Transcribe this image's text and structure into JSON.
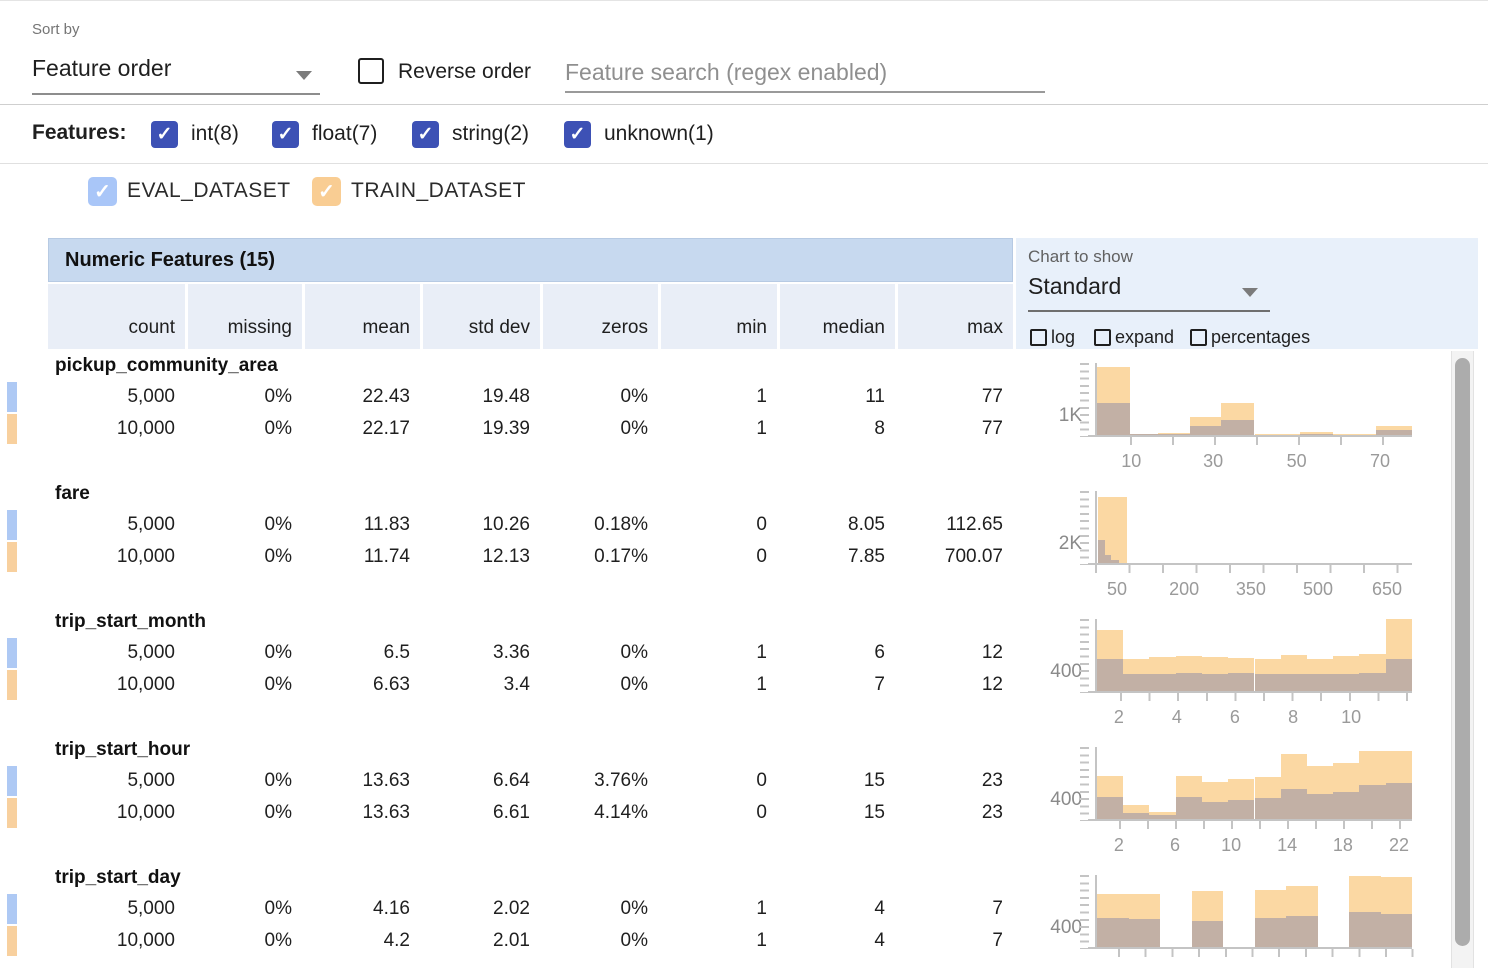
{
  "toolbar": {
    "sort_by_label": "Sort by",
    "sort_by_value": "Feature order",
    "reverse_order_label": "Reverse order",
    "search_placeholder": "Feature search (regex enabled)"
  },
  "filters": {
    "label": "Features:",
    "types": [
      {
        "label": "int(8)",
        "checked": true
      },
      {
        "label": "float(7)",
        "checked": true
      },
      {
        "label": "string(2)",
        "checked": true
      },
      {
        "label": "unknown(1)",
        "checked": true
      }
    ]
  },
  "datasets": [
    {
      "name": "EVAL_DATASET",
      "checked": true,
      "color": "#a9c6f8",
      "swatch": "#aec9f4"
    },
    {
      "name": "TRAIN_DATASET",
      "checked": true,
      "color": "#f9cd93",
      "swatch": "#f8d09e"
    }
  ],
  "table": {
    "title": "Numeric Features (15)",
    "columns": [
      "count",
      "missing",
      "mean",
      "std dev",
      "zeros",
      "min",
      "median",
      "max"
    ],
    "chart_controls": {
      "label": "Chart to show",
      "selected": "Standard",
      "checkboxes": [
        {
          "label": "log",
          "checked": false
        },
        {
          "label": "expand",
          "checked": false
        },
        {
          "label": "percentages",
          "checked": false
        }
      ]
    },
    "features": [
      {
        "name": "pickup_community_area",
        "rows": [
          [
            "5,000",
            "0%",
            "22.43",
            "19.48",
            "0%",
            "1",
            "11",
            "77"
          ],
          [
            "10,000",
            "0%",
            "22.17",
            "19.39",
            "0%",
            "1",
            "8",
            "77"
          ]
        ],
        "histogram": {
          "y_label": "1K",
          "x_ticks": [
            {
              "label": "10",
              "pos": 0.115
            },
            {
              "label": "30",
              "pos": 0.375
            },
            {
              "label": "50",
              "pos": 0.64
            },
            {
              "label": "70",
              "pos": 0.905
            }
          ],
          "tick_offset": 35,
          "tick_spacing": 42,
          "bars": [
            {
              "x": 0.0,
              "w": 0.105,
              "t": 0.95,
              "e": 0.44
            },
            {
              "x": 0.105,
              "w": 0.09,
              "t": 0.015,
              "e": 0.007
            },
            {
              "x": 0.195,
              "w": 0.1,
              "t": 0.03,
              "e": 0.012
            },
            {
              "x": 0.295,
              "w": 0.1,
              "t": 0.25,
              "e": 0.12
            },
            {
              "x": 0.395,
              "w": 0.105,
              "t": 0.44,
              "e": 0.21
            },
            {
              "x": 0.5,
              "w": 0.145,
              "t": 0.01,
              "e": 0.005
            },
            {
              "x": 0.645,
              "w": 0.105,
              "t": 0.04,
              "e": 0.012
            },
            {
              "x": 0.75,
              "w": 0.135,
              "t": 0.012,
              "e": 0.005
            },
            {
              "x": 0.885,
              "w": 0.115,
              "t": 0.13,
              "e": 0.07
            }
          ]
        }
      },
      {
        "name": "fare",
        "rows": [
          [
            "5,000",
            "0%",
            "11.83",
            "10.26",
            "0.18%",
            "0",
            "8.05",
            "112.65"
          ],
          [
            "10,000",
            "0%",
            "11.74",
            "12.13",
            "0.17%",
            "0",
            "7.85",
            "700.07"
          ]
        ],
        "histogram": {
          "y_label": "2K",
          "x_ticks": [
            {
              "label": "50",
              "pos": 0.07
            },
            {
              "label": "200",
              "pos": 0.283
            },
            {
              "label": "350",
              "pos": 0.495
            },
            {
              "label": "500",
              "pos": 0.708
            },
            {
              "label": "650",
              "pos": 0.927
            }
          ],
          "tick_offset": 0,
          "tick_spacing": 33.5,
          "bars": [
            {
              "x": 0.002,
              "w": 0.092,
              "t": 0.92,
              "e": 0
            },
            {
              "x": 0.002,
              "w": 0.023,
              "t": 0,
              "e": 0.32
            },
            {
              "x": 0.025,
              "w": 0.02,
              "t": 0,
              "e": 0.11
            },
            {
              "x": 0.045,
              "w": 0.024,
              "t": 0,
              "e": 0.035
            }
          ]
        }
      },
      {
        "name": "trip_start_month",
        "rows": [
          [
            "5,000",
            "0%",
            "6.5",
            "3.36",
            "0%",
            "1",
            "6",
            "12"
          ],
          [
            "10,000",
            "0%",
            "6.63",
            "3.4",
            "0%",
            "1",
            "7",
            "12"
          ]
        ],
        "histogram": {
          "y_label": "400",
          "x_ticks": [
            {
              "label": "2",
              "pos": 0.076
            },
            {
              "label": "4",
              "pos": 0.26
            },
            {
              "label": "6",
              "pos": 0.444
            },
            {
              "label": "8",
              "pos": 0.629
            },
            {
              "label": "10",
              "pos": 0.813
            }
          ],
          "tick_offset": 25,
          "tick_spacing": 28.6,
          "bars": [
            {
              "x": 0.0,
              "w": 0.0833,
              "t": 0.85,
              "e": 0.44
            },
            {
              "x": 0.0833,
              "w": 0.0833,
              "t": 0.44,
              "e": 0.23
            },
            {
              "x": 0.1666,
              "w": 0.0833,
              "t": 0.47,
              "e": 0.24
            },
            {
              "x": 0.25,
              "w": 0.0833,
              "t": 0.48,
              "e": 0.25
            },
            {
              "x": 0.3333,
              "w": 0.0833,
              "t": 0.47,
              "e": 0.24
            },
            {
              "x": 0.4166,
              "w": 0.0833,
              "t": 0.46,
              "e": 0.25
            },
            {
              "x": 0.5,
              "w": 0.0833,
              "t": 0.45,
              "e": 0.23
            },
            {
              "x": 0.5833,
              "w": 0.0833,
              "t": 0.5,
              "e": 0.24
            },
            {
              "x": 0.6666,
              "w": 0.0833,
              "t": 0.44,
              "e": 0.23
            },
            {
              "x": 0.75,
              "w": 0.0833,
              "t": 0.48,
              "e": 0.24
            },
            {
              "x": 0.8333,
              "w": 0.0833,
              "t": 0.52,
              "e": 0.25
            },
            {
              "x": 0.9166,
              "w": 0.0834,
              "t": 1.0,
              "e": 0.45
            }
          ]
        }
      },
      {
        "name": "trip_start_hour",
        "rows": [
          [
            "5,000",
            "0%",
            "13.63",
            "6.64",
            "3.76%",
            "0",
            "15",
            "23"
          ],
          [
            "10,000",
            "0%",
            "13.63",
            "6.61",
            "4.14%",
            "0",
            "15",
            "23"
          ]
        ],
        "histogram": {
          "y_label": "400",
          "x_ticks": [
            {
              "label": "2",
              "pos": 0.076
            },
            {
              "label": "6",
              "pos": 0.254
            },
            {
              "label": "10",
              "pos": 0.432
            },
            {
              "label": "14",
              "pos": 0.61
            },
            {
              "label": "18",
              "pos": 0.787
            },
            {
              "label": "22",
              "pos": 0.965
            }
          ],
          "tick_offset": 24,
          "tick_spacing": 28,
          "bars": [
            {
              "x": 0.0,
              "w": 0.0833,
              "t": 0.6,
              "e": 0.31
            },
            {
              "x": 0.0833,
              "w": 0.0833,
              "t": 0.19,
              "e": 0.08
            },
            {
              "x": 0.1666,
              "w": 0.0833,
              "t": 0.1,
              "e": 0.06
            },
            {
              "x": 0.25,
              "w": 0.0833,
              "t": 0.6,
              "e": 0.31
            },
            {
              "x": 0.3333,
              "w": 0.0833,
              "t": 0.51,
              "e": 0.24
            },
            {
              "x": 0.4166,
              "w": 0.0833,
              "t": 0.56,
              "e": 0.26
            },
            {
              "x": 0.5,
              "w": 0.0833,
              "t": 0.58,
              "e": 0.29
            },
            {
              "x": 0.5833,
              "w": 0.0833,
              "t": 0.9,
              "e": 0.41
            },
            {
              "x": 0.6666,
              "w": 0.0833,
              "t": 0.73,
              "e": 0.35
            },
            {
              "x": 0.75,
              "w": 0.0833,
              "t": 0.78,
              "e": 0.38
            },
            {
              "x": 0.8333,
              "w": 0.0833,
              "t": 0.95,
              "e": 0.47
            },
            {
              "x": 0.9166,
              "w": 0.0834,
              "t": 0.94,
              "e": 0.5
            }
          ]
        }
      },
      {
        "name": "trip_start_day",
        "rows": [
          [
            "5,000",
            "0%",
            "4.16",
            "2.02",
            "0%",
            "1",
            "4",
            "7"
          ],
          [
            "10,000",
            "0%",
            "4.2",
            "2.01",
            "0%",
            "1",
            "4",
            "7"
          ]
        ],
        "histogram": {
          "y_label": "400",
          "x_ticks": [],
          "tick_offset": 23,
          "tick_spacing": 26.7,
          "bars": [
            {
              "x": 0.0,
              "w": 0.1,
              "t": 0.73,
              "e": 0.4
            },
            {
              "x": 0.1,
              "w": 0.1,
              "t": 0.73,
              "e": 0.39
            },
            {
              "x": 0.3,
              "w": 0.1,
              "t": 0.78,
              "e": 0.36
            },
            {
              "x": 0.5,
              "w": 0.1,
              "t": 0.79,
              "e": 0.4
            },
            {
              "x": 0.6,
              "w": 0.1,
              "t": 0.85,
              "e": 0.43
            },
            {
              "x": 0.8,
              "w": 0.1,
              "t": 0.98,
              "e": 0.49
            },
            {
              "x": 0.9,
              "w": 0.1,
              "t": 0.97,
              "e": 0.46
            }
          ]
        }
      }
    ]
  },
  "colors": {
    "accent_indigo": "#3d51b5",
    "bar_train": "#fbd8a3",
    "bar_overlap": "#c2b0a5",
    "header_bar_bg": "#c7d9ef",
    "header_row_bg": "#e9eef7",
    "chart_panel_bg": "#e8f0fa"
  }
}
